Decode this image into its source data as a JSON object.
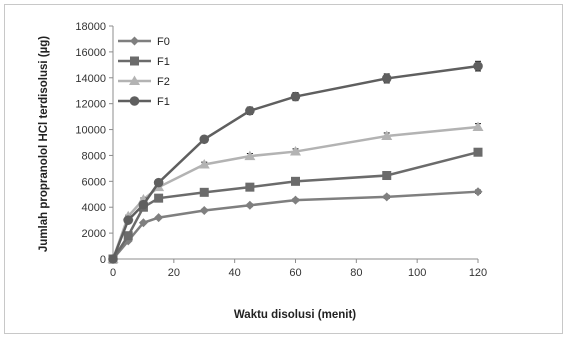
{
  "chart_data": {
    "type": "line",
    "title": "",
    "xlabel": "Waktu disolusi (menit)",
    "ylabel": "Jumlah propranolol HCl terdisolusi (µg)",
    "xlim": [
      0,
      120
    ],
    "ylim": [
      0,
      18000
    ],
    "xticks": [
      0,
      20,
      40,
      60,
      80,
      100,
      120
    ],
    "yticks": [
      0,
      2000,
      4000,
      6000,
      8000,
      10000,
      12000,
      14000,
      16000,
      18000
    ],
    "grid": false,
    "legend_position": "top-left",
    "x": [
      0,
      5,
      10,
      15,
      30,
      45,
      60,
      90,
      120
    ],
    "series": [
      {
        "name": "F0",
        "marker": "diamond",
        "color": "#7f7f7f",
        "values": [
          0,
          1400,
          2800,
          3200,
          3750,
          4150,
          4550,
          4800,
          5200
        ]
      },
      {
        "name": "F1",
        "marker": "square",
        "color": "#6b6b6b",
        "values": [
          0,
          1800,
          4000,
          4700,
          5150,
          5550,
          6000,
          6450,
          8250
        ]
      },
      {
        "name": "F2",
        "marker": "triangle",
        "color": "#b3b3b3",
        "values": [
          0,
          3300,
          4600,
          5550,
          7300,
          7950,
          8300,
          9500,
          10200
        ]
      },
      {
        "name": "F1",
        "marker": "circle",
        "color": "#5f5f5f",
        "values": [
          0,
          3000,
          4200,
          5900,
          9250,
          11450,
          12550,
          13950,
          14900
        ]
      }
    ]
  }
}
